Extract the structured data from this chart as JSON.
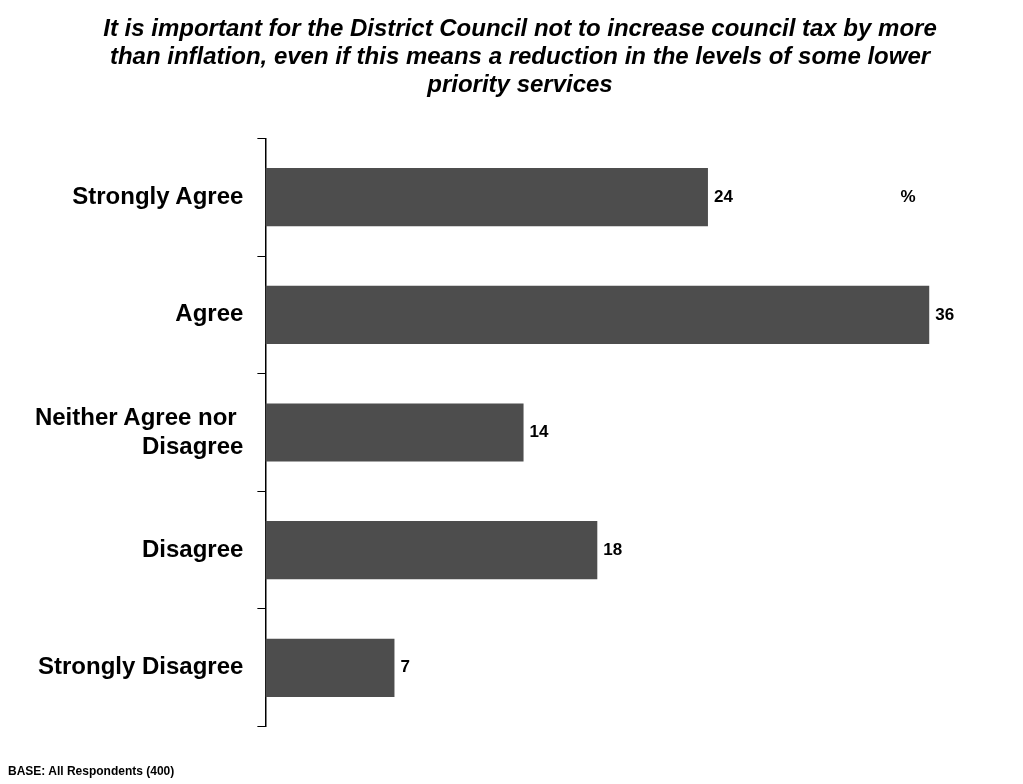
{
  "chart_data": {
    "type": "bar",
    "orientation": "horizontal",
    "title": "It is important for the District Council not to increase council tax by more than inflation, even if this means a reduction in the levels of some lower priority services",
    "categories": [
      "Strongly Agree",
      "Agree",
      "Neither Agree nor Disagree",
      "Disagree",
      "Strongly Disagree"
    ],
    "values": [
      24,
      36,
      14,
      18,
      7
    ],
    "color": "#4d4d4d",
    "data_labels": true,
    "annotations": [
      "%",
      "BASE: All Respondents (400)"
    ]
  }
}
